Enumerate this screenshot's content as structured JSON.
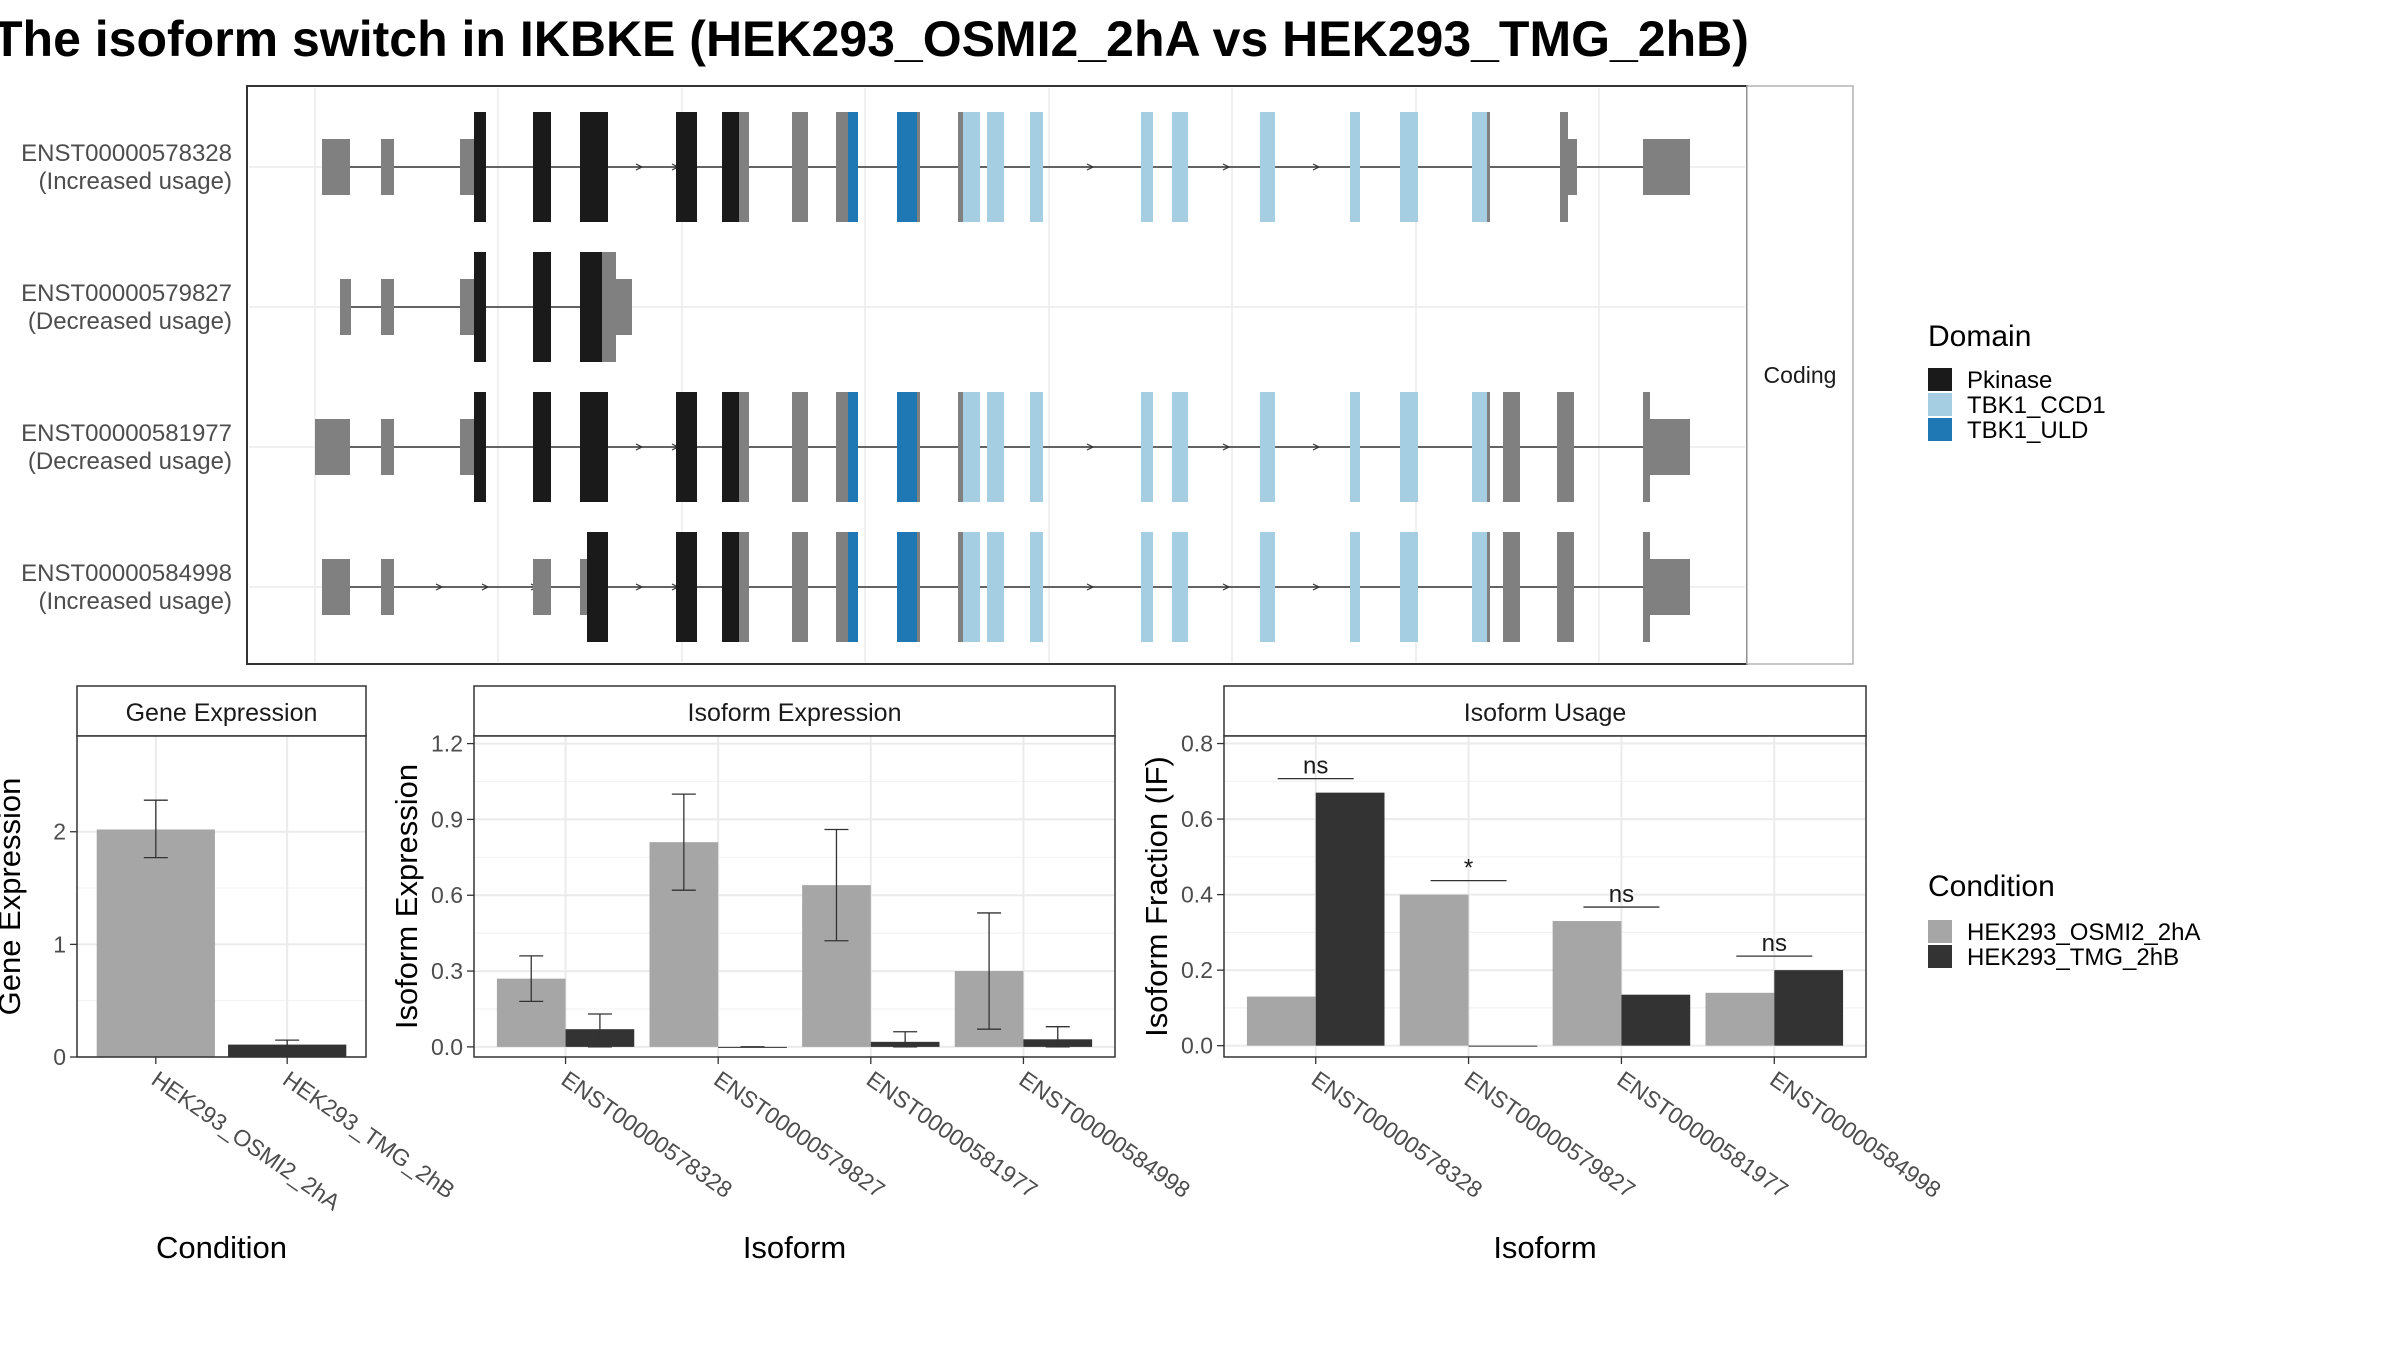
{
  "title": "The isoform switch in IKBKE (HEK293_OSMI2_2hA vs HEK293_TMG_2hB)",
  "structure": {
    "strip_label": "Coding",
    "isoforms": [
      {
        "id": "ENST00000578328",
        "note": "(Increased usage)"
      },
      {
        "id": "ENST00000579827",
        "note": "(Decreased usage)"
      },
      {
        "id": "ENST00000581977",
        "note": "(Decreased usage)"
      },
      {
        "id": "ENST00000584998",
        "note": "(Increased usage)"
      }
    ],
    "domain_legend": {
      "title": "Domain",
      "items": [
        {
          "name": "Pkinase",
          "color": "#1a1a1a"
        },
        {
          "name": "TBK1_CCD1",
          "color": "#a6cee3"
        },
        {
          "name": "TBK1_ULD",
          "color": "#1f78b4"
        }
      ]
    }
  },
  "condition_legend": {
    "title": "Condition",
    "items": [
      {
        "name": "HEK293_OSMI2_2hA",
        "color": "#a6a6a6"
      },
      {
        "name": "HEK293_TMG_2hB",
        "color": "#333333"
      }
    ]
  },
  "chart_data": [
    {
      "type": "bar",
      "title": "Gene Expression",
      "xlabel": "Condition",
      "ylabel": "Gene Expression",
      "categories": [
        "HEK293_OSMI2_2hA",
        "HEK293_TMG_2hB"
      ],
      "values": [
        2.02,
        0.11
      ],
      "errors": [
        [
          1.77,
          2.28
        ],
        [
          0.08,
          0.15
        ]
      ],
      "ylim": [
        0,
        2.85
      ],
      "yticks": [
        0,
        1,
        2
      ],
      "grid": true
    },
    {
      "type": "bar",
      "title": "Isoform Expression",
      "xlabel": "Isoform",
      "ylabel": "Isoform Expression",
      "categories": [
        "ENST00000578328",
        "ENST00000579827",
        "ENST00000581977",
        "ENST00000584998"
      ],
      "series": [
        {
          "name": "HEK293_OSMI2_2hA",
          "values": [
            0.27,
            0.81,
            0.64,
            0.3
          ],
          "errors": [
            [
              0.18,
              0.36
            ],
            [
              0.62,
              1.0
            ],
            [
              0.42,
              0.86
            ],
            [
              0.07,
              0.53
            ]
          ]
        },
        {
          "name": "HEK293_TMG_2hB",
          "values": [
            0.07,
            0.0,
            0.02,
            0.03
          ],
          "errors": [
            [
              0.0,
              0.13
            ],
            [
              0.0,
              0.0
            ],
            [
              0.0,
              0.06
            ],
            [
              0.0,
              0.08
            ]
          ]
        }
      ],
      "ylim": [
        -0.04,
        1.23
      ],
      "yticks": [
        0.0,
        0.3,
        0.6,
        0.9,
        1.2
      ],
      "ytick_labels": [
        "0.0",
        "0.3",
        "0.6",
        "0.9",
        "1.2"
      ],
      "grid": true
    },
    {
      "type": "bar",
      "title": "Isoform Usage",
      "xlabel": "Isoform",
      "ylabel": "Isoform Fraction (IF)",
      "categories": [
        "ENST00000578328",
        "ENST00000579827",
        "ENST00000581977",
        "ENST00000584998"
      ],
      "series": [
        {
          "name": "HEK293_OSMI2_2hA",
          "values": [
            0.13,
            0.4,
            0.33,
            0.14
          ]
        },
        {
          "name": "HEK293_TMG_2hB",
          "values": [
            0.67,
            0.0,
            0.135,
            0.2
          ]
        }
      ],
      "significance": [
        "ns",
        "*",
        "ns",
        "ns"
      ],
      "ylim": [
        -0.03,
        0.82
      ],
      "yticks": [
        0.0,
        0.2,
        0.4,
        0.6,
        0.8
      ],
      "ytick_labels": [
        "0.0",
        "0.2",
        "0.4",
        "0.6",
        "0.8"
      ],
      "grid": true
    }
  ]
}
